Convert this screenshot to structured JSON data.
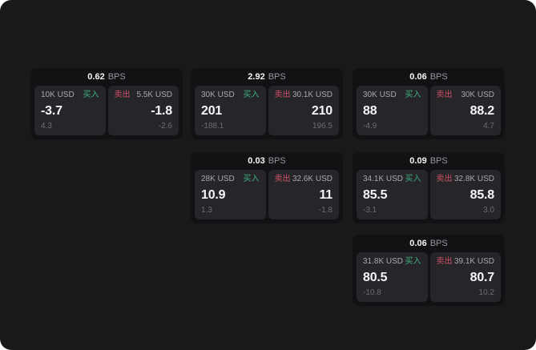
{
  "labels": {
    "bps": "BPS",
    "buy": "买入",
    "sell": "卖出"
  },
  "colors": {
    "page_bg": "#19191b",
    "card_bg": "#121214",
    "panel_bg": "#26262a",
    "buy_green": "#3fae7c",
    "sell_red": "#cf5064",
    "text_bright": "#f6f6f8",
    "text_label": "#a7a7ad",
    "text_sub": "#6c6c73",
    "text_dim": "#96969c"
  },
  "cards": [
    {
      "bps": "0.62",
      "buy": {
        "amount": "10K USD",
        "price": "-3.7",
        "sub": "4.3"
      },
      "sell": {
        "amount": "5.5K USD",
        "price": "-1.8",
        "sub": "-2.6"
      }
    },
    {
      "bps": "2.92",
      "buy": {
        "amount": "30K USD",
        "price": "201",
        "sub": "-188.1"
      },
      "sell": {
        "amount": "30.1K USD",
        "price": "210",
        "sub": "196.5"
      }
    },
    {
      "bps": "0.06",
      "buy": {
        "amount": "30K USD",
        "price": "88",
        "sub": "-4.9"
      },
      "sell": {
        "amount": "30K USD",
        "price": "88.2",
        "sub": "4.7"
      }
    },
    {
      "bps": "0.03",
      "buy": {
        "amount": "28K USD",
        "price": "10.9",
        "sub": "1.3"
      },
      "sell": {
        "amount": "32.6K USD",
        "price": "11",
        "sub": "-1.8"
      }
    },
    {
      "bps": "0.09",
      "buy": {
        "amount": "34.1K USD",
        "price": "85.5",
        "sub": "-3.1"
      },
      "sell": {
        "amount": "32.8K USD",
        "price": "85.8",
        "sub": "3.0"
      }
    },
    {
      "bps": "0.06",
      "buy": {
        "amount": "31.8K USD",
        "price": "80.5",
        "sub": "-10.8"
      },
      "sell": {
        "amount": "39.1K USD",
        "price": "80.7",
        "sub": "10.2"
      }
    }
  ]
}
